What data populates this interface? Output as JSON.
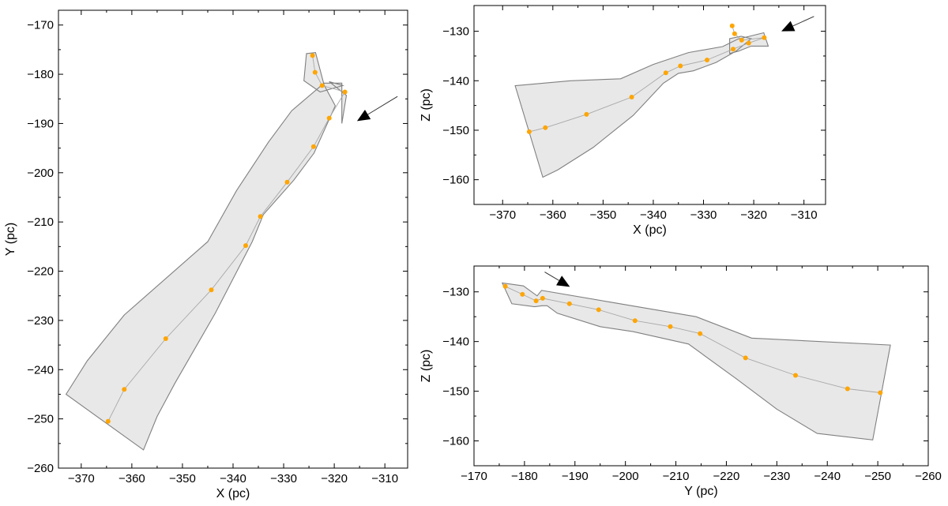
{
  "chart_data": [
    {
      "id": "xy",
      "type": "line",
      "xlabel": "X (pc)",
      "ylabel": "Y (pc)",
      "xlim": [
        -374.5,
        -305.5
      ],
      "ylim": [
        -260,
        -167
      ],
      "xticks": [
        -370,
        -360,
        -350,
        -340,
        -330,
        -320,
        -310
      ],
      "yticks": [
        -170,
        -180,
        -190,
        -200,
        -210,
        -220,
        -230,
        -240,
        -250,
        -260
      ],
      "xtick_labels": [
        "−370",
        "−360",
        "−350",
        "−340",
        "−330",
        "−320",
        "−310"
      ],
      "ytick_labels": [
        "−170",
        "−180",
        "−190",
        "−200",
        "−210",
        "−220",
        "−230",
        "−240",
        "−250",
        "−260"
      ],
      "grid": false,
      "points": {
        "x": [
          -364.7,
          -361.5,
          -353.3,
          -344.3,
          -337.5,
          -334.6,
          -329.3,
          -324.1,
          -321.0,
          -317.9,
          -322.4,
          -323.8,
          -324.3
        ],
        "y": [
          -250.5,
          -244.0,
          -233.7,
          -223.8,
          -214.8,
          -208.9,
          -201.9,
          -194.7,
          -188.9,
          -183.6,
          -182.3,
          -179.6,
          -176.2
        ]
      },
      "envelope": {
        "x": [
          -373.0,
          -368.8,
          -361.5,
          -345.0,
          -339.3,
          -333.0,
          -328.4,
          -322.0,
          -318.5,
          -318.5,
          -317.6,
          -321.0,
          -318.3,
          -322.8,
          -326.0,
          -325.5,
          -323.7,
          -322.0,
          -319.8,
          -324.0,
          -328.0,
          -334.0,
          -336.2,
          -343.5,
          -351.5,
          -355.0,
          -357.7
        ],
        "y": [
          -245.0,
          -238.2,
          -228.9,
          -214.0,
          -203.6,
          -193.8,
          -187.4,
          -181.8,
          -181.8,
          -190.0,
          -184.3,
          -181.5,
          -182.3,
          -183.6,
          -181.3,
          -175.8,
          -175.6,
          -182.2,
          -186.4,
          -196.0,
          -201.5,
          -208.5,
          -214.0,
          -228.5,
          -242.8,
          -249.5,
          -256.3
        ]
      },
      "arrow": {
        "from": [
          -307.5,
          -184.5
        ],
        "to": [
          -315.5,
          -189.5
        ]
      }
    },
    {
      "id": "xz",
      "type": "line",
      "xlabel": "X (pc)",
      "ylabel": "Z (pc)",
      "xlim": [
        -375.7,
        -305.7
      ],
      "ylim": [
        -165,
        -124.8
      ],
      "xticks": [
        -370,
        -360,
        -350,
        -340,
        -330,
        -320,
        -310
      ],
      "yticks": [
        -130,
        -140,
        -150,
        -160
      ],
      "xtick_labels": [
        "−370",
        "−360",
        "−350",
        "−340",
        "−330",
        "−320",
        "−310"
      ],
      "ytick_labels": [
        "−130",
        "−140",
        "−150",
        "−160"
      ],
      "grid": false,
      "points": {
        "x": [
          -364.7,
          -361.5,
          -353.3,
          -344.3,
          -337.5,
          -334.6,
          -329.3,
          -324.1,
          -321.0,
          -317.9,
          -322.4,
          -323.8,
          -324.3
        ],
        "y": [
          -150.3,
          -149.5,
          -146.8,
          -143.3,
          -138.4,
          -137.0,
          -135.8,
          -133.6,
          -132.4,
          -131.3,
          -131.8,
          -130.5,
          -128.9
        ]
      },
      "envelope": {
        "x": [
          -367.5,
          -356.5,
          -346.5,
          -340.0,
          -333.0,
          -326.2,
          -323.2,
          -318.0,
          -318.0,
          -317.1,
          -320.5,
          -323.0,
          -324.8,
          -324.8,
          -322.5,
          -320.5,
          -323.5,
          -327.5,
          -332.0,
          -335.0,
          -338.0,
          -344.0,
          -352.0,
          -359.0,
          -362.0
        ],
        "y": [
          -141.0,
          -140.0,
          -139.6,
          -136.7,
          -134.3,
          -133.1,
          -131.6,
          -130.3,
          -130.3,
          -133.0,
          -133.0,
          -134.0,
          -134.5,
          -131.5,
          -131.0,
          -131.5,
          -134.0,
          -136.3,
          -138.0,
          -138.5,
          -140.5,
          -147.0,
          -153.5,
          -158.0,
          -159.5
        ]
      },
      "arrow": {
        "from": [
          -308.0,
          -127.0
        ],
        "to": [
          -314.5,
          -130.0
        ]
      }
    },
    {
      "id": "yz",
      "type": "line",
      "xlabel": "Y (pc)",
      "ylabel": "Z (pc)",
      "xlim": [
        -170,
        -260
      ],
      "ylim": [
        -165,
        -124.8
      ],
      "xticks": [
        -170,
        -180,
        -190,
        -200,
        -210,
        -220,
        -230,
        -240,
        -250,
        -260
      ],
      "yticks": [
        -130,
        -140,
        -150,
        -160
      ],
      "xtick_labels": [
        "−170",
        "−180",
        "−190",
        "−200",
        "−210",
        "−220",
        "−230",
        "−240",
        "−250",
        "−260"
      ],
      "ytick_labels": [
        "−130",
        "−140",
        "−150",
        "−160"
      ],
      "grid": false,
      "points": {
        "x": [
          -176.2,
          -179.6,
          -182.3,
          -183.6,
          -188.9,
          -194.7,
          -201.9,
          -208.9,
          -214.8,
          -223.8,
          -233.7,
          -244.0,
          -250.5
        ],
        "y": [
          -128.9,
          -130.5,
          -131.8,
          -131.3,
          -132.4,
          -133.6,
          -135.8,
          -137.0,
          -138.4,
          -143.3,
          -146.8,
          -149.5,
          -150.3
        ]
      },
      "envelope": {
        "x": [
          -175.6,
          -179.8,
          -182.5,
          -183.4,
          -184.0,
          -214.0,
          -225.0,
          -252.5,
          -249.0,
          -238.0,
          -230.0,
          -222.0,
          -212.5,
          -201.5,
          -195.0,
          -186.5,
          -184.5,
          -183.5,
          -182.0,
          -177.5
        ],
        "y": [
          -128.2,
          -128.8,
          -130.8,
          -129.7,
          -129.8,
          -135.0,
          -139.3,
          -140.7,
          -159.8,
          -158.5,
          -153.6,
          -147.5,
          -140.5,
          -138.0,
          -137.0,
          -134.3,
          -132.8,
          -132.8,
          -133.0,
          -132.4
        ]
      },
      "arrow": {
        "from": [
          -184.0,
          -126.0
        ],
        "to": [
          -189.0,
          -129.0
        ]
      }
    }
  ],
  "style": {
    "envelope_fill": "#e8e8e8",
    "envelope_stroke": "#808080",
    "line_color": "#a8a8a8",
    "point_color": "#ffa500",
    "arrow_color": "#000000"
  }
}
